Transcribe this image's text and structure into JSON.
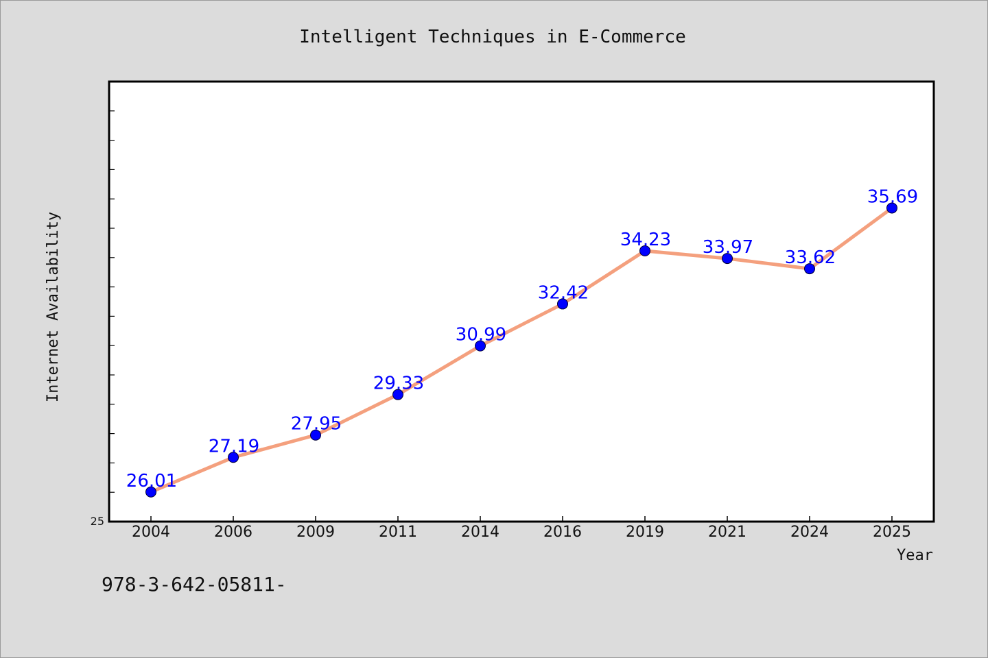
{
  "chart_data": {
    "type": "line",
    "title": "Intelligent Techniques in E-Commerce",
    "xlabel": "Year",
    "ylabel": "Internet Availability",
    "categories": [
      "2004",
      "2006",
      "2009",
      "2011",
      "2014",
      "2016",
      "2019",
      "2021",
      "2024",
      "2025"
    ],
    "series": [
      {
        "values": [
          26.01,
          27.19,
          27.95,
          29.33,
          30.99,
          32.42,
          34.23,
          33.97,
          33.62,
          35.69
        ],
        "line_color": "#f4a07e",
        "marker_color": "#0000ff",
        "label_color": "#0000ff"
      }
    ],
    "ylim": [
      25,
      40
    ],
    "yticks_labeled": [
      "25"
    ],
    "grid": false,
    "legend": "none",
    "show_data_labels": true
  },
  "footer": {
    "text": "978-3-642-05811-"
  }
}
